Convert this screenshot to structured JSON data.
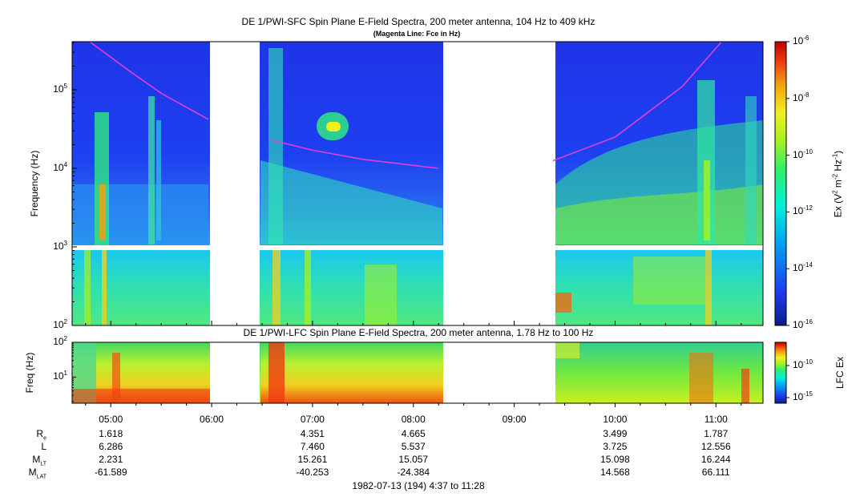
{
  "chart_data": [
    {
      "type": "heatmap",
      "title": "DE 1/PWI-SFC  Spin Plane E-Field Spectra, 200 meter antenna, 104 Hz to 409 kHz",
      "subtitle": "(Magenta Line: Fce in Hz)",
      "ylabel": "Frequency (Hz)",
      "yscale": "log",
      "ylim": [
        100,
        409000
      ],
      "ytick_labels": [
        "10^2",
        "10^3",
        "10^4",
        "10^5"
      ],
      "xlim": [
        "04:37",
        "11:28"
      ],
      "data_gaps": [
        [
          "06:00",
          "06:30"
        ],
        [
          "08:15",
          "09:22"
        ]
      ],
      "colorbar": {
        "label": "Ex (V^2 m^-2 Hz^-1)",
        "scale": "log",
        "range": [
          1e-16,
          1e-06
        ],
        "tick_labels": [
          "10^-6",
          "10^-8",
          "10^-10",
          "10^-12",
          "10^-14",
          "10^-16"
        ],
        "colormap": [
          "#0b1c8c",
          "#1f3cf0",
          "#00a8f0",
          "#00f0d8",
          "#2ef06a",
          "#a8f020",
          "#f0f020",
          "#f0a010",
          "#f03a10",
          "#c00000"
        ]
      },
      "fce_line": {
        "color": "#e040e0",
        "segments": [
          {
            "x": [
              "04:48",
              "05:10",
              "05:30",
              "05:58"
            ],
            "y": [
              400000,
              180000,
              90000,
              42000
            ]
          },
          {
            "x": [
              "06:35",
              "07:00",
              "07:30",
              "08:15"
            ],
            "y": [
              23000,
              17000,
              13000,
              10000
            ]
          },
          {
            "x": [
              "09:23",
              "10:00",
              "10:40",
              "11:03"
            ],
            "y": [
              12500,
              25000,
              110000,
              400000
            ]
          }
        ]
      }
    },
    {
      "type": "heatmap",
      "title": "DE 1/PWI-LFC  Spin Plane E-Field Spectra, 200 meter antenna, 1.78 Hz to 100 Hz",
      "ylabel": "Freq (Hz)",
      "yscale": "log",
      "ylim": [
        1.78,
        100
      ],
      "ytick_labels": [
        "10^2",
        "10^1"
      ],
      "xlim": [
        "04:37",
        "11:28"
      ],
      "xtick_labels": [
        "05:00",
        "06:00",
        "07:00",
        "08:00",
        "09:00",
        "10:00",
        "11:00"
      ],
      "data_gaps": [
        [
          "06:00",
          "06:30"
        ],
        [
          "08:15",
          "09:22"
        ]
      ],
      "colorbar": {
        "label": "LFC Ex",
        "scale": "log",
        "tick_labels": [
          "10^-10",
          "10^-15"
        ]
      }
    }
  ],
  "ephemeris": {
    "rows": [
      {
        "label": "R",
        "sub": "e",
        "values": [
          "1.618",
          "4.351",
          "4.665",
          "3.499",
          "1.787"
        ]
      },
      {
        "label": "L",
        "sub": "",
        "values": [
          "6.286",
          "7.460",
          "5.537",
          "3.725",
          "12.556"
        ]
      },
      {
        "label": "M",
        "sub": "LT",
        "values": [
          "2.231",
          "15.261",
          "15.057",
          "15.098",
          "16.244"
        ]
      },
      {
        "label": "M",
        "sub": "LAT",
        "values": [
          "-61.589",
          "-40.253",
          "-24.384",
          "14.568",
          "66.111"
        ]
      }
    ],
    "value_times": [
      "05:00",
      "07:00",
      "08:00",
      "10:00",
      "11:00"
    ],
    "footer": "1982-07-13 (194) 4:37 to 11:28"
  }
}
